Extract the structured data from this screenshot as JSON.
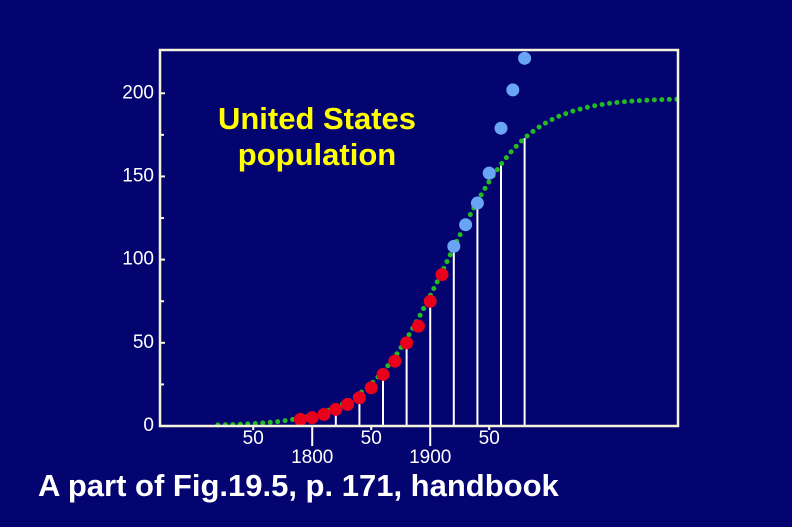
{
  "chart_data": {
    "type": "scatter",
    "title_lines": [
      "United States",
      "population"
    ],
    "caption": "A part of Fig.19.5, p. 171, handbook",
    "xlim": [
      1671,
      2110
    ],
    "ylim": [
      0,
      226
    ],
    "xticks": [
      {
        "value": 1750,
        "label": "50"
      },
      1800,
      {
        "value": 1850,
        "label": "50"
      },
      1900,
      {
        "value": 1950,
        "label": "50"
      }
    ],
    "yticks": [
      0,
      50,
      100,
      150,
      200
    ],
    "yminorticks": [
      25,
      75,
      125,
      175
    ],
    "series": [
      {
        "color": "#e8001c",
        "x": [
          1790,
          1800,
          1810,
          1820,
          1830,
          1840,
          1850,
          1860,
          1870,
          1880,
          1890,
          1900,
          1910
        ],
        "values": [
          4,
          5,
          7,
          10,
          13,
          17,
          23,
          31,
          39,
          50,
          60,
          75,
          91
        ]
      },
      {
        "color": "#6aa4f4",
        "x": [
          1920,
          1930,
          1940,
          1950,
          1960,
          1970,
          1980
        ],
        "values": [
          108,
          121,
          134,
          152,
          179,
          202,
          221
        ]
      }
    ],
    "fit": {
      "color": "#22bb22",
      "x": [
        1720,
        1730,
        1740,
        1750,
        1760,
        1770,
        1780,
        1790,
        1800,
        1810,
        1820,
        1830,
        1840,
        1850,
        1860,
        1870,
        1880,
        1890,
        1900,
        1910,
        1920,
        1930,
        1940,
        1950,
        1960,
        1970,
        1980,
        1990,
        2000,
        2010,
        2020,
        2030,
        2040,
        2050,
        2060,
        2070,
        2080,
        2090,
        2100,
        2110
      ],
      "values": [
        0.58,
        0.79,
        1.06,
        1.43,
        1.92,
        2.59,
        3.47,
        4.66,
        6.23,
        8.35,
        11.1,
        14.7,
        19.3,
        25.2,
        32.6,
        41.5,
        52.3,
        64.6,
        78.2,
        92.5,
        107.4,
        121.7,
        135.1,
        147.0,
        157.3,
        166.1,
        173.1,
        178.7,
        183.1,
        186.5,
        189.1,
        191.1,
        192.6,
        193.7,
        194.6,
        195.2,
        195.7,
        196.0,
        196.3,
        196.4
      ]
    },
    "drop_lines": [
      1820,
      1840,
      1860,
      1880,
      1900,
      1920,
      1940,
      1960,
      1980
    ]
  }
}
